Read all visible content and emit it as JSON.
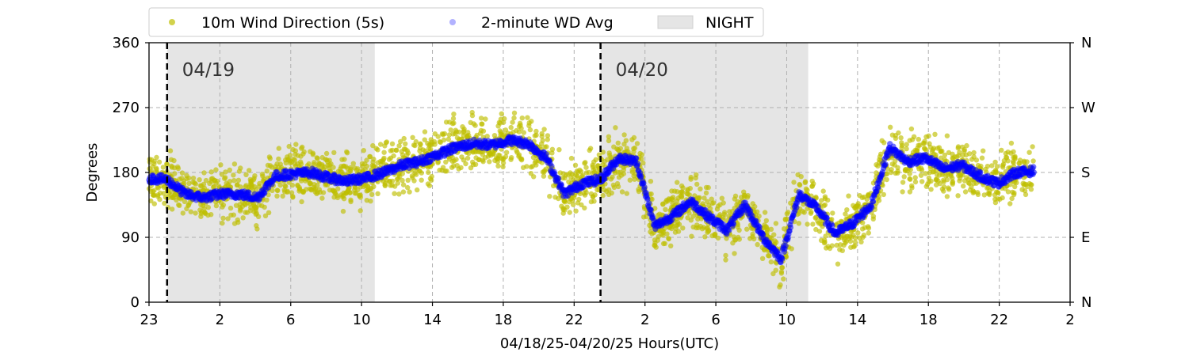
{
  "chart_data": {
    "type": "scatter",
    "xlabel": "04/18/25-04/20/25  Hours(UTC)",
    "ylabel": "Degrees",
    "x_ticks": [
      "23",
      "2",
      "6",
      "10",
      "14",
      "18",
      "22",
      "2",
      "6",
      "10",
      "14",
      "18",
      "22",
      "2"
    ],
    "x_range_hours": [
      0,
      51
    ],
    "ylim": [
      0,
      360
    ],
    "y_ticks": [
      0,
      90,
      180,
      270,
      360
    ],
    "y2_ticks": [
      "N",
      "E",
      "S",
      "W",
      "N"
    ],
    "grid": true,
    "legend_position": "top",
    "legend": [
      {
        "label": "10m Wind Direction (5s)",
        "color": "#bfbf00",
        "marker": "dot"
      },
      {
        "label": "2-minute WD Avg",
        "color": "#0000ff",
        "marker": "dot"
      },
      {
        "label": "NIGHT",
        "color": "#e5e5e5",
        "marker": "box"
      }
    ],
    "night_periods_hours": [
      [
        1,
        12.5
      ],
      [
        25,
        36.5
      ]
    ],
    "date_markers": [
      {
        "hour": 1,
        "label": "04/19"
      },
      {
        "hour": 25,
        "label": "04/20"
      }
    ],
    "series": [
      {
        "name": "2-minute WD Avg",
        "color": "#0000ff",
        "x_hours": [
          0,
          1,
          2,
          3,
          4,
          5,
          6,
          7,
          8,
          9,
          10,
          11,
          12,
          13,
          14,
          15,
          16,
          17,
          18,
          19,
          20,
          21,
          22,
          23,
          24,
          25,
          26,
          27,
          28,
          29,
          30,
          31,
          32,
          33,
          34,
          35,
          36,
          37,
          38,
          39,
          40,
          41,
          42,
          43,
          44,
          45,
          46,
          47,
          48,
          49
        ],
        "values": [
          172,
          170,
          150,
          145,
          150,
          150,
          145,
          175,
          178,
          180,
          172,
          168,
          172,
          180,
          190,
          195,
          205,
          215,
          220,
          218,
          225,
          220,
          200,
          150,
          165,
          170,
          200,
          195,
          105,
          120,
          140,
          118,
          100,
          135,
          90,
          60,
          150,
          130,
          95,
          110,
          135,
          215,
          195,
          200,
          185,
          190,
          175,
          165,
          180,
          182
        ]
      }
    ],
    "scatter_spread_degrees": 28
  }
}
